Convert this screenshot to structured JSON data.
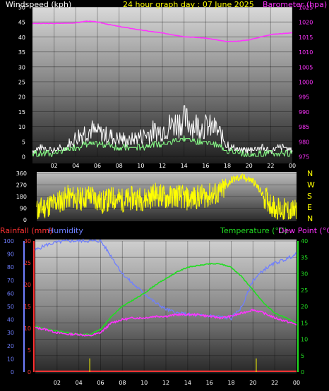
{
  "colors": {
    "white": "#ffffff",
    "yellow": "#ffff00",
    "magenta": "#ff33ff",
    "green": "#22dd22",
    "lightgreen": "#88ff88",
    "blue": "#6f7fff",
    "red": "#ff3333",
    "gray": "#bbbbbb"
  },
  "chart_data": [
    {
      "type": "line",
      "title": "24 hour graph day : 07 June 2025",
      "ylabel": "Windspeed (kph)",
      "y2label": "Barometer (hpa)",
      "x_ticks": [
        "02",
        "04",
        "06",
        "08",
        "10",
        "12",
        "14",
        "16",
        "18",
        "20",
        "22",
        "00"
      ],
      "y_ticks": [
        0,
        5,
        10,
        15,
        20,
        25,
        30,
        35,
        40,
        45,
        50
      ],
      "y2_ticks": [
        975,
        980,
        985,
        990,
        995,
        1000,
        1005,
        1010,
        1015,
        1020,
        1025
      ],
      "ylim": [
        0,
        50
      ],
      "y2lim": [
        975,
        1025
      ],
      "xlim": [
        0,
        24
      ],
      "series": [
        {
          "key": "barometer",
          "axis": "y2",
          "x": [
            0,
            2,
            4,
            5,
            6,
            7,
            8,
            10,
            12,
            14,
            16,
            17,
            18,
            19,
            20,
            22,
            24
          ],
          "values": [
            1019.5,
            1019.5,
            1019.7,
            1020.3,
            1020,
            1019.2,
            1018.5,
            1017.3,
            1016.3,
            1015.1,
            1014.6,
            1014,
            1013.4,
            1013.6,
            1014,
            1015.8,
            1016.4
          ]
        },
        {
          "key": "gust",
          "x": [
            0,
            1,
            2,
            3,
            4,
            5,
            6,
            7,
            8,
            9,
            10,
            11,
            12,
            13,
            14,
            15,
            16,
            17,
            18,
            19,
            20,
            21,
            22,
            23,
            24
          ],
          "values": [
            2,
            3,
            2,
            3,
            6,
            9,
            8,
            7,
            6,
            5,
            7,
            8,
            9,
            11,
            12,
            11,
            10,
            9,
            4,
            2,
            2,
            3,
            2,
            3,
            2
          ]
        },
        {
          "key": "average",
          "x": [
            0,
            1,
            2,
            3,
            4,
            5,
            6,
            7,
            8,
            9,
            10,
            11,
            12,
            13,
            14,
            15,
            16,
            17,
            18,
            19,
            20,
            21,
            22,
            23,
            24
          ],
          "values": [
            1,
            1,
            1,
            2,
            3,
            4,
            4,
            4,
            3,
            3,
            3,
            4,
            4,
            5,
            6,
            5,
            5,
            4,
            2,
            1,
            0,
            1,
            1,
            1,
            1
          ]
        }
      ]
    },
    {
      "type": "line",
      "ylabel_ticks": [
        0,
        90,
        180,
        270,
        360
      ],
      "y2_ticks": [
        "N",
        "W",
        "S",
        "E",
        "N"
      ],
      "ylim": [
        0,
        360
      ],
      "xlim": [
        0,
        24
      ],
      "series": [
        {
          "key": "wind_direction",
          "x": [
            0,
            1,
            2,
            3,
            4,
            5,
            6,
            7,
            8,
            9,
            10,
            11,
            12,
            13,
            14,
            15,
            16,
            17,
            18,
            19,
            20,
            21,
            22,
            23,
            24
          ],
          "values": [
            70,
            110,
            140,
            180,
            160,
            190,
            130,
            170,
            150,
            170,
            160,
            200,
            170,
            190,
            160,
            180,
            190,
            210,
            310,
            330,
            300,
            180,
            90,
            70,
            60
          ]
        }
      ]
    },
    {
      "type": "line",
      "ylabel": "Humidity",
      "ylabel2": "Rainfall (mm)",
      "y2label": "Temperature (°C)",
      "y2label2": "Dew Point (°C)",
      "x_ticks": [
        "02",
        "04",
        "06",
        "08",
        "10",
        "12",
        "14",
        "16",
        "18",
        "20",
        "22",
        "00"
      ],
      "humidity_ticks": [
        0,
        10,
        20,
        30,
        40,
        50,
        60,
        70,
        80,
        90,
        100
      ],
      "rain_ticks": [
        0,
        5,
        10,
        15,
        20,
        25,
        30
      ],
      "temp_ticks": [
        0,
        5,
        10,
        15,
        20,
        25,
        30,
        35,
        40
      ],
      "humidity_lim": [
        0,
        100
      ],
      "rain_lim": [
        0,
        30
      ],
      "temp_lim": [
        0,
        40
      ],
      "xlim": [
        0,
        24
      ],
      "series": [
        {
          "key": "humidity",
          "axis": "humidity",
          "x": [
            0,
            1,
            2,
            3,
            4,
            5,
            6,
            7,
            8,
            9,
            10,
            11,
            12,
            13,
            14,
            15,
            16,
            17,
            18,
            19,
            20,
            21,
            22,
            23,
            24
          ],
          "values": [
            93,
            97,
            99,
            100,
            100,
            100,
            100,
            88,
            75,
            67,
            60,
            53,
            48,
            45,
            44,
            43,
            43,
            42,
            41,
            50,
            70,
            78,
            83,
            86,
            90
          ]
        },
        {
          "key": "temperature",
          "axis": "temp",
          "x": [
            0,
            1,
            2,
            3,
            4,
            5,
            6,
            7,
            8,
            9,
            10,
            11,
            12,
            13,
            14,
            15,
            16,
            17,
            18,
            19,
            20,
            21,
            22,
            23,
            24
          ],
          "values": [
            14,
            13,
            12.5,
            12,
            11.5,
            11.5,
            13,
            17,
            20,
            22,
            24,
            26.5,
            28.5,
            30.5,
            32,
            32.5,
            33,
            33,
            32,
            29,
            25,
            21,
            18,
            16.5,
            15
          ]
        },
        {
          "key": "dewpoint",
          "axis": "temp",
          "x": [
            0,
            1,
            2,
            3,
            4,
            5,
            6,
            7,
            8,
            9,
            10,
            11,
            12,
            13,
            14,
            15,
            16,
            17,
            18,
            19,
            20,
            21,
            22,
            23,
            24
          ],
          "values": [
            13.5,
            13,
            12,
            11.5,
            11.5,
            11,
            12,
            15,
            16,
            16.5,
            16.5,
            17,
            17,
            17.5,
            17.5,
            17.5,
            17,
            16.5,
            17,
            18,
            19,
            18,
            16.5,
            15.5,
            14.5
          ]
        },
        {
          "key": "rain_marks",
          "axis": "rain",
          "x": [
            5,
            20.3
          ],
          "values": [
            1.5,
            1.5
          ]
        }
      ]
    }
  ]
}
